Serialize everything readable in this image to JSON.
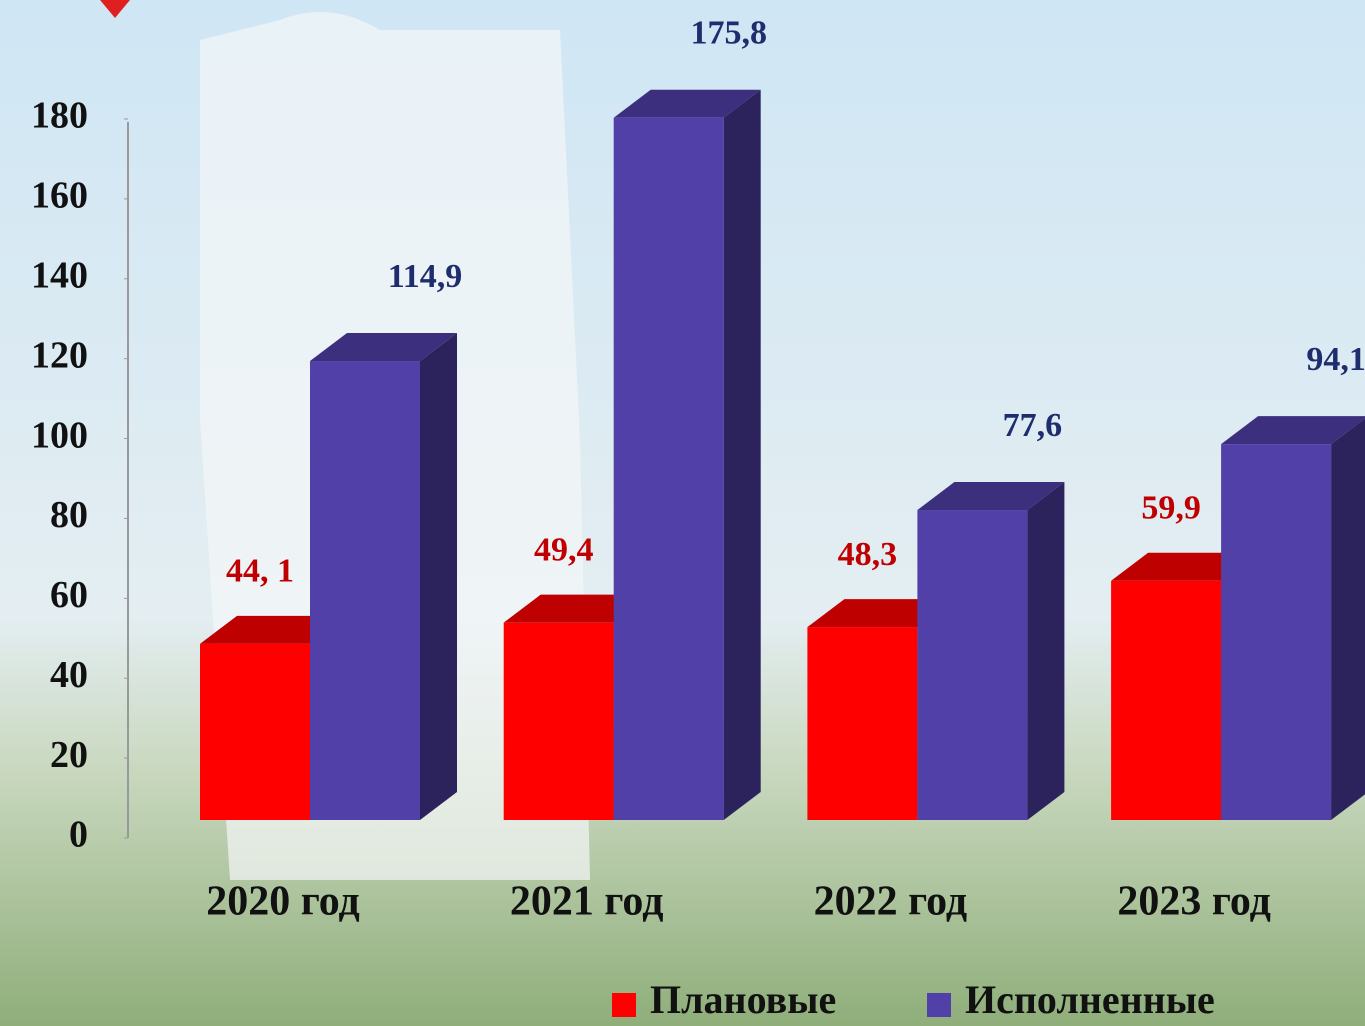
{
  "chart_data": {
    "type": "bar",
    "categories": [
      "2020 год",
      "2021 год",
      "2022 год",
      "2023 год"
    ],
    "series": [
      {
        "name": "Плановые",
        "color": "#ff0000",
        "values": [
          44.1,
          49.4,
          48.3,
          59.9
        ],
        "value_labels": [
          "44, 1",
          "49,4",
          "48,3",
          "59,9"
        ]
      },
      {
        "name": "Исполненные",
        "color": "#5040a8",
        "values": [
          114.9,
          175.8,
          77.6,
          94.1
        ],
        "value_labels": [
          "114,9",
          "175,8",
          "77,6",
          "94,1"
        ]
      }
    ],
    "ylim": [
      0,
      180
    ],
    "yticks": [
      0,
      20,
      40,
      60,
      80,
      100,
      120,
      140,
      160,
      180
    ],
    "grid": false
  }
}
